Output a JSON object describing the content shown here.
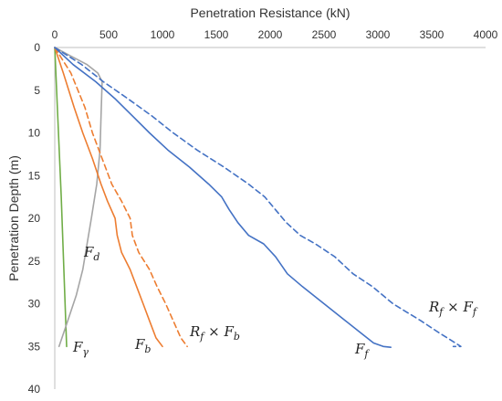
{
  "chart_data": {
    "type": "line",
    "xlabel": "Penetration Resistance (kN)",
    "ylabel": "Penetration Depth (m)",
    "xlim": [
      0,
      4000
    ],
    "ylim": [
      0,
      40
    ],
    "x_axis_position": "top",
    "y_inverted": true,
    "grid": false,
    "x_ticks": [
      "0",
      "500",
      "1000",
      "1500",
      "2000",
      "2500",
      "3000",
      "3500",
      "4000"
    ],
    "y_ticks": [
      "0",
      "5",
      "10",
      "15",
      "20",
      "25",
      "30",
      "35",
      "40"
    ],
    "series": [
      {
        "name": "F_γ",
        "color": "#70ad47",
        "dash": false,
        "points": [
          [
            0,
            0
          ],
          [
            60,
            17.5
          ],
          [
            110,
            35
          ]
        ]
      },
      {
        "name": "F_d",
        "color": "#a5a5a5",
        "dash": false,
        "points": [
          [
            0,
            0
          ],
          [
            150,
            1
          ],
          [
            300,
            2
          ],
          [
            400,
            3
          ],
          [
            440,
            4
          ],
          [
            430,
            8
          ],
          [
            420,
            12
          ],
          [
            390,
            16
          ],
          [
            340,
            20
          ],
          [
            300,
            23
          ],
          [
            260,
            26
          ],
          [
            200,
            29
          ],
          [
            120,
            32
          ],
          [
            40,
            35
          ]
        ]
      },
      {
        "name": "F_b",
        "color": "#ed7d31",
        "dash": false,
        "points": [
          [
            0,
            0
          ],
          [
            80,
            3
          ],
          [
            180,
            7
          ],
          [
            260,
            10
          ],
          [
            350,
            13
          ],
          [
            430,
            16
          ],
          [
            490,
            18
          ],
          [
            560,
            20
          ],
          [
            580,
            22
          ],
          [
            620,
            24
          ],
          [
            700,
            26
          ],
          [
            760,
            28
          ],
          [
            820,
            30
          ],
          [
            880,
            32
          ],
          [
            940,
            34
          ],
          [
            1000,
            35
          ]
        ]
      },
      {
        "name": "R_f × F_b",
        "color": "#ed7d31",
        "dash": true,
        "points": [
          [
            0,
            0
          ],
          [
            150,
            3
          ],
          [
            280,
            7
          ],
          [
            350,
            10
          ],
          [
            440,
            13
          ],
          [
            530,
            16
          ],
          [
            620,
            18
          ],
          [
            700,
            20
          ],
          [
            720,
            22
          ],
          [
            780,
            24
          ],
          [
            880,
            26
          ],
          [
            950,
            28
          ],
          [
            1030,
            30
          ],
          [
            1100,
            32
          ],
          [
            1170,
            34
          ],
          [
            1230,
            35
          ]
        ]
      },
      {
        "name": "F_f",
        "color": "#4472c4",
        "dash": false,
        "points": [
          [
            0,
            0
          ],
          [
            170,
            2
          ],
          [
            380,
            4
          ],
          [
            560,
            6
          ],
          [
            720,
            8
          ],
          [
            880,
            10
          ],
          [
            1050,
            12
          ],
          [
            1250,
            14
          ],
          [
            1430,
            16
          ],
          [
            1550,
            17.5
          ],
          [
            1620,
            19
          ],
          [
            1700,
            20.5
          ],
          [
            1800,
            22
          ],
          [
            1940,
            23
          ],
          [
            2050,
            24.5
          ],
          [
            2160,
            26.5
          ],
          [
            2300,
            28
          ],
          [
            2500,
            30
          ],
          [
            2700,
            32
          ],
          [
            2850,
            33.5
          ],
          [
            2960,
            34.6
          ],
          [
            3050,
            35
          ],
          [
            3120,
            35.1
          ]
        ]
      },
      {
        "name": "R_f × F_f",
        "color": "#4472c4",
        "dash": true,
        "points": [
          [
            0,
            0
          ],
          [
            250,
            2
          ],
          [
            450,
            4
          ],
          [
            680,
            6
          ],
          [
            900,
            8
          ],
          [
            1100,
            10
          ],
          [
            1320,
            12
          ],
          [
            1570,
            14
          ],
          [
            1800,
            16
          ],
          [
            1950,
            17.5
          ],
          [
            2050,
            19
          ],
          [
            2150,
            20.5
          ],
          [
            2280,
            22
          ],
          [
            2420,
            23
          ],
          [
            2600,
            24.5
          ],
          [
            2770,
            26.5
          ],
          [
            2950,
            28
          ],
          [
            3140,
            30
          ],
          [
            3400,
            32
          ],
          [
            3580,
            33.5
          ],
          [
            3720,
            34.6
          ],
          [
            3770,
            35
          ],
          [
            3700,
            35
          ]
        ]
      }
    ]
  }
}
